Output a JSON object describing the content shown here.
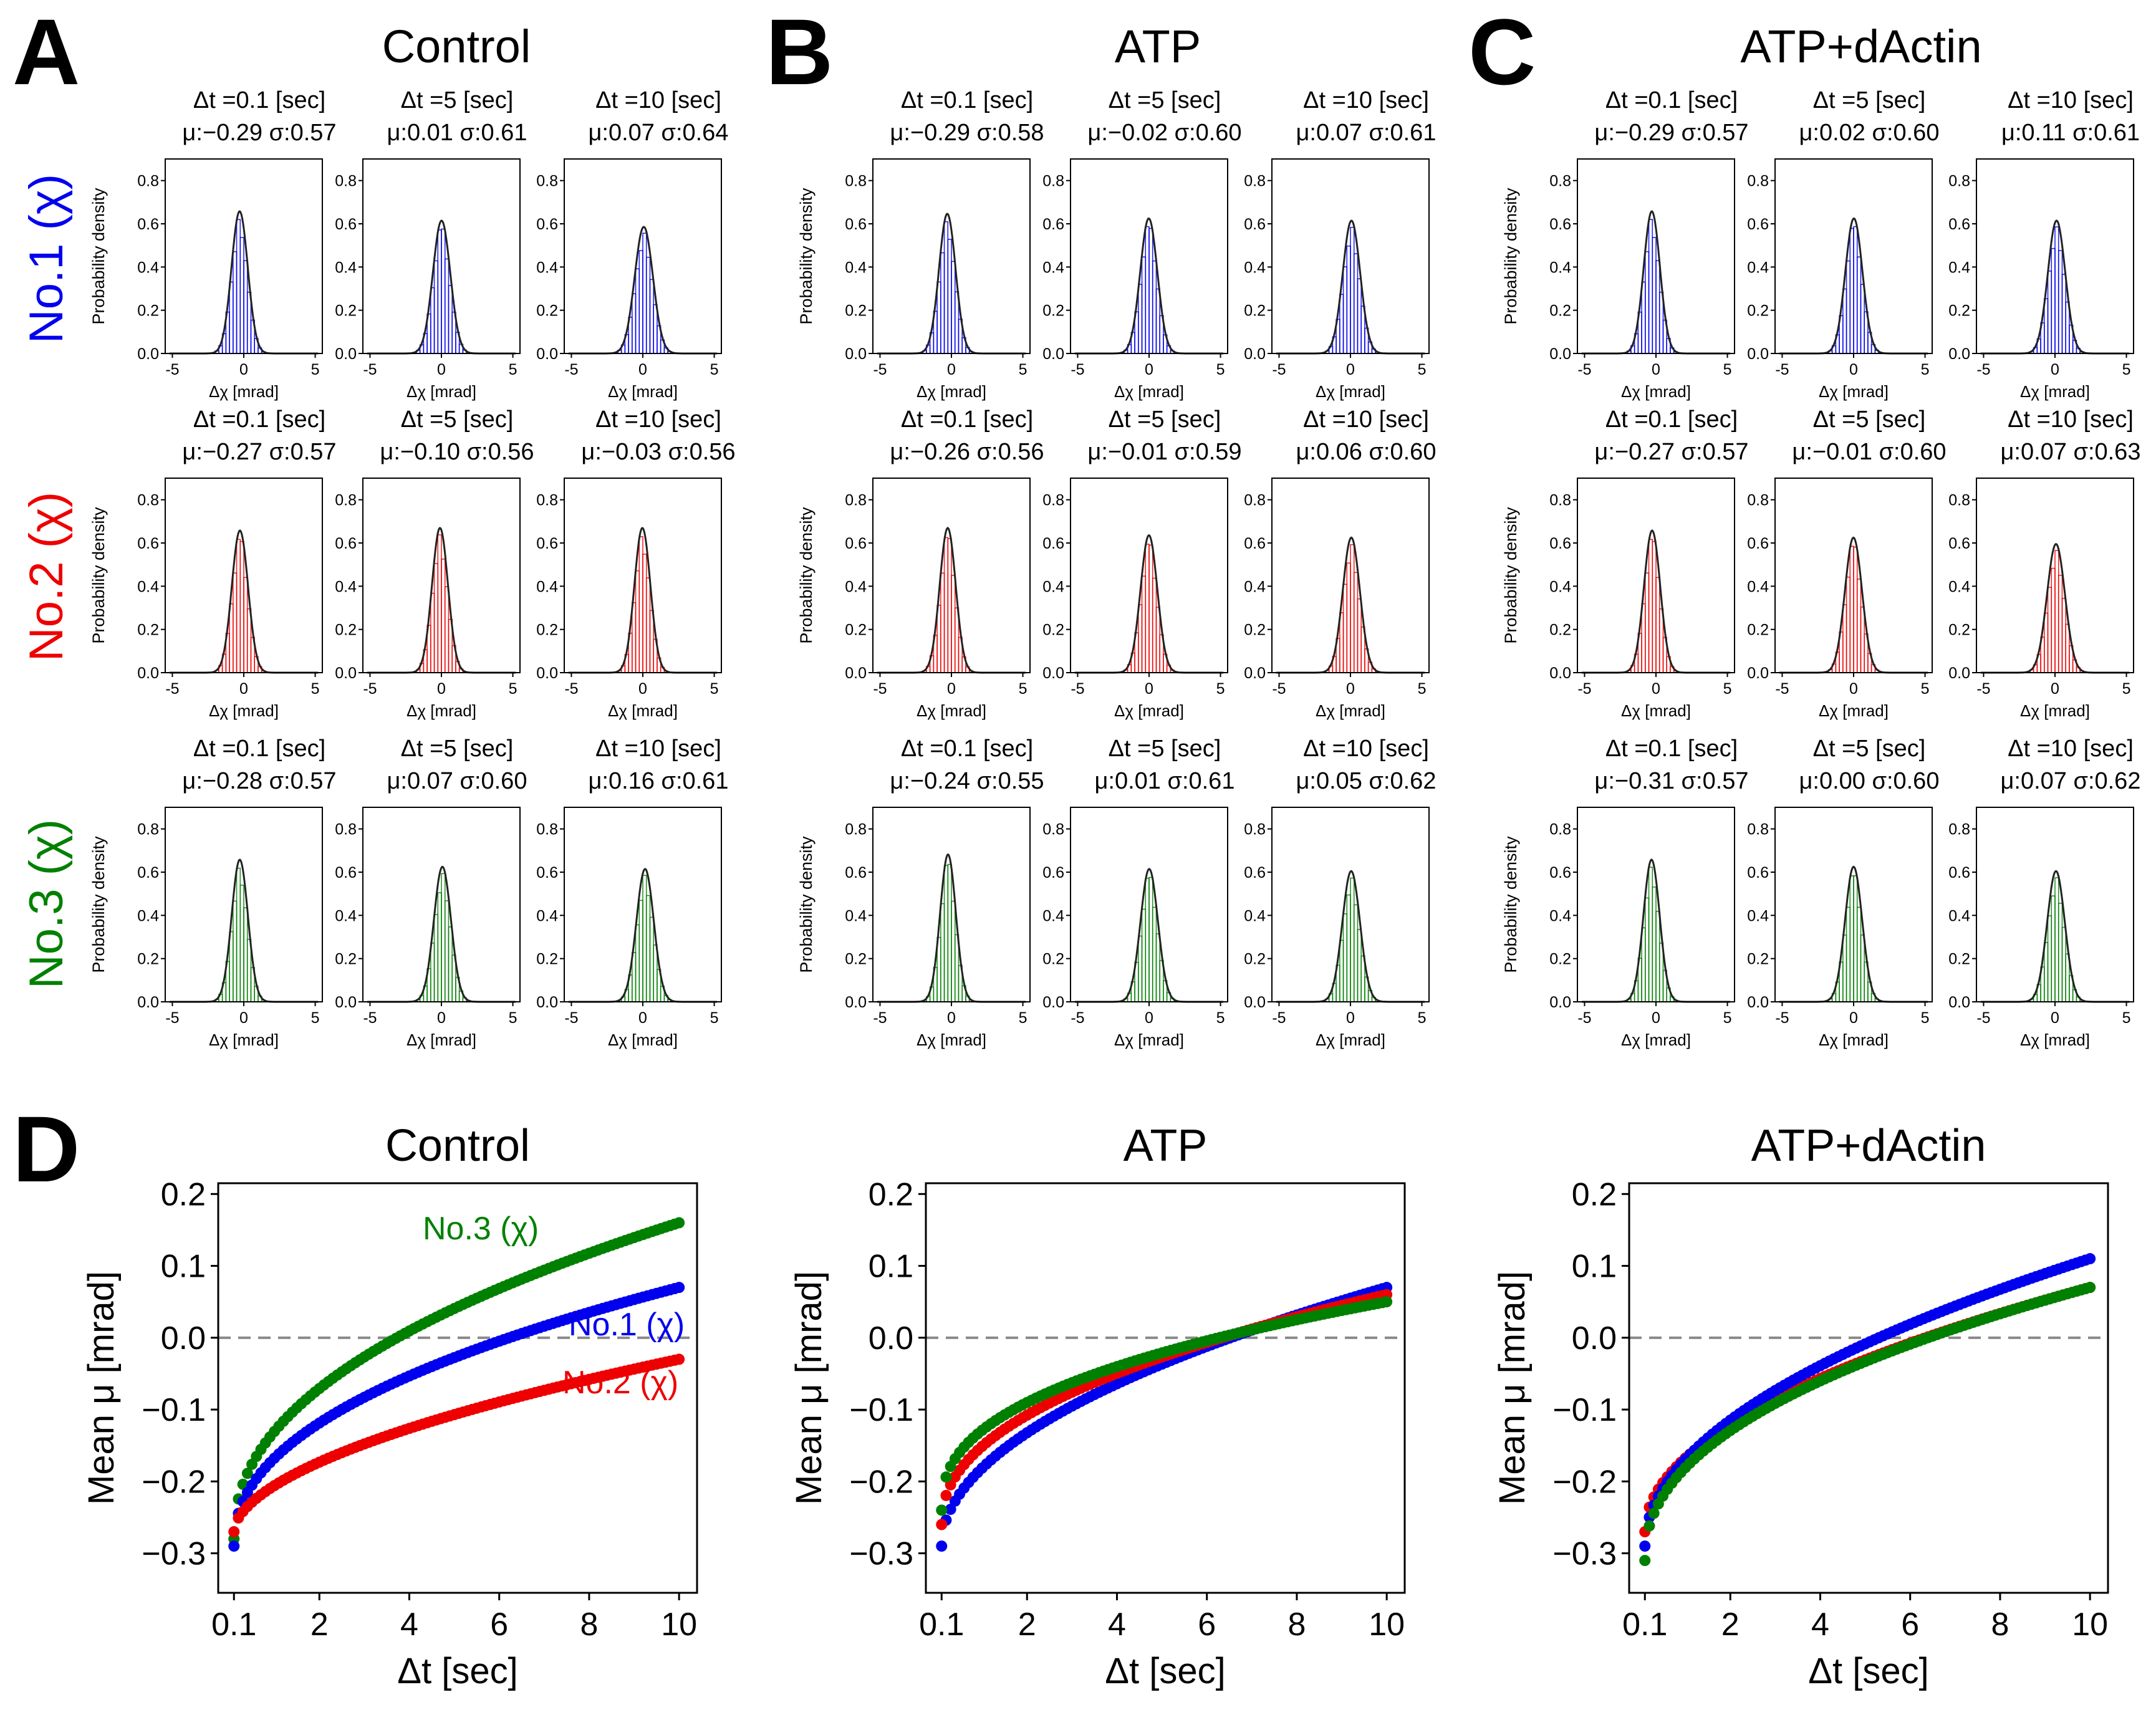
{
  "panel_letters": [
    "A",
    "B",
    "C",
    "D"
  ],
  "colors": {
    "no1": "#0000ee",
    "no2": "#ee0000",
    "no3": "#008000",
    "fit": "#222222",
    "zero_line": "#8a8a8a"
  },
  "row_labels": [
    "No.1 (χ)",
    "No.2 (χ)",
    "No.3 (χ)"
  ],
  "chart_data": [
    {
      "type": "histogram-grid",
      "columns": [
        {
          "title": "Control",
          "rows": [
            [
              {
                "dt": "Δt =0.1 [sec]",
                "stats": "μ:−0.29 σ:0.57",
                "mu": -0.29,
                "sigma": 0.57
              },
              {
                "dt": "Δt =5 [sec]",
                "stats": "μ:0.01 σ:0.61",
                "mu": 0.01,
                "sigma": 0.61
              },
              {
                "dt": "Δt =10 [sec]",
                "stats": "μ:0.07 σ:0.64",
                "mu": 0.07,
                "sigma": 0.64
              }
            ],
            [
              {
                "dt": "Δt =0.1 [sec]",
                "stats": "μ:−0.27 σ:0.57",
                "mu": -0.27,
                "sigma": 0.57
              },
              {
                "dt": "Δt =5 [sec]",
                "stats": "μ:−0.10 σ:0.56",
                "mu": -0.1,
                "sigma": 0.56
              },
              {
                "dt": "Δt =10 [sec]",
                "stats": "μ:−0.03 σ:0.56",
                "mu": -0.03,
                "sigma": 0.56
              }
            ],
            [
              {
                "dt": "Δt =0.1 [sec]",
                "stats": "μ:−0.28 σ:0.57",
                "mu": -0.28,
                "sigma": 0.57
              },
              {
                "dt": "Δt =5 [sec]",
                "stats": "μ:0.07 σ:0.60",
                "mu": 0.07,
                "sigma": 0.6
              },
              {
                "dt": "Δt =10 [sec]",
                "stats": "μ:0.16 σ:0.61",
                "mu": 0.16,
                "sigma": 0.61
              }
            ]
          ]
        },
        {
          "title": "ATP",
          "rows": [
            [
              {
                "dt": "Δt =0.1 [sec]",
                "stats": "μ:−0.29 σ:0.58",
                "mu": -0.29,
                "sigma": 0.58
              },
              {
                "dt": "Δt =5 [sec]",
                "stats": "μ:−0.02 σ:0.60",
                "mu": -0.02,
                "sigma": 0.6
              },
              {
                "dt": "Δt =10 [sec]",
                "stats": "μ:0.07 σ:0.61",
                "mu": 0.07,
                "sigma": 0.61
              }
            ],
            [
              {
                "dt": "Δt =0.1 [sec]",
                "stats": "μ:−0.26 σ:0.56",
                "mu": -0.26,
                "sigma": 0.56
              },
              {
                "dt": "Δt =5 [sec]",
                "stats": "μ:−0.01 σ:0.59",
                "mu": -0.01,
                "sigma": 0.59
              },
              {
                "dt": "Δt =10 [sec]",
                "stats": "μ:0.06 σ:0.60",
                "mu": 0.06,
                "sigma": 0.6
              }
            ],
            [
              {
                "dt": "Δt =0.1 [sec]",
                "stats": "μ:−0.24 σ:0.55",
                "mu": -0.24,
                "sigma": 0.55
              },
              {
                "dt": "Δt =5 [sec]",
                "stats": "μ:0.01 σ:0.61",
                "mu": 0.01,
                "sigma": 0.61
              },
              {
                "dt": "Δt =10 [sec]",
                "stats": "μ:0.05 σ:0.62",
                "mu": 0.05,
                "sigma": 0.62
              }
            ]
          ]
        },
        {
          "title": "ATP+dActin",
          "rows": [
            [
              {
                "dt": "Δt =0.1 [sec]",
                "stats": "μ:−0.29 σ:0.57",
                "mu": -0.29,
                "sigma": 0.57
              },
              {
                "dt": "Δt =5 [sec]",
                "stats": "μ:0.02 σ:0.60",
                "mu": 0.02,
                "sigma": 0.6
              },
              {
                "dt": "Δt =10 [sec]",
                "stats": "μ:0.11 σ:0.61",
                "mu": 0.11,
                "sigma": 0.61
              }
            ],
            [
              {
                "dt": "Δt =0.1 [sec]",
                "stats": "μ:−0.27 σ:0.57",
                "mu": -0.27,
                "sigma": 0.57
              },
              {
                "dt": "Δt =5 [sec]",
                "stats": "μ:−0.01 σ:0.60",
                "mu": -0.01,
                "sigma": 0.6
              },
              {
                "dt": "Δt =10 [sec]",
                "stats": "μ:0.07 σ:0.63",
                "mu": 0.07,
                "sigma": 0.63
              }
            ],
            [
              {
                "dt": "Δt =0.1 [sec]",
                "stats": "μ:−0.31 σ:0.57",
                "mu": -0.31,
                "sigma": 0.57
              },
              {
                "dt": "Δt =5 [sec]",
                "stats": "μ:0.00 σ:0.60",
                "mu": 0.0,
                "sigma": 0.6
              },
              {
                "dt": "Δt =10 [sec]",
                "stats": "μ:0.07 σ:0.62",
                "mu": 0.07,
                "sigma": 0.62
              }
            ]
          ]
        }
      ],
      "ylabel": "Probability density",
      "xlabel": "Δχ [mrad]",
      "xlim": [
        -5.5,
        5.5
      ],
      "xticks": [
        -5,
        0,
        5
      ],
      "ylim": [
        0,
        0.9
      ],
      "yticks": [
        0.0,
        0.2,
        0.4,
        0.6,
        0.8
      ],
      "ytick_labels": [
        "0.0",
        "0.2",
        "0.4",
        "0.6",
        "0.8"
      ]
    },
    {
      "type": "scatter",
      "panels": [
        {
          "title": "Control",
          "series": [
            {
              "name": "No.3 (χ)",
              "color": "#008000",
              "start": -0.28,
              "end": 0.16,
              "exponent": 0.45
            },
            {
              "name": "No.1 (χ)",
              "color": "#0000ee",
              "start": -0.29,
              "end": 0.07,
              "exponent": 0.45
            },
            {
              "name": "No.2 (χ)",
              "color": "#ee0000",
              "start": -0.27,
              "end": -0.03,
              "exponent": 0.55
            }
          ],
          "annotations": [
            "No.3 (χ)",
            "No.1 (χ)",
            "No.2 (χ)"
          ]
        },
        {
          "title": "ATP",
          "series": [
            {
              "name": "No.1 (χ)",
              "color": "#0000ee",
              "start": -0.29,
              "end": 0.07,
              "exponent": 0.5
            },
            {
              "name": "No.2 (χ)",
              "color": "#ee0000",
              "start": -0.26,
              "end": 0.06,
              "exponent": 0.45
            },
            {
              "name": "No.3 (χ)",
              "color": "#008000",
              "start": -0.24,
              "end": 0.05,
              "exponent": 0.4
            }
          ],
          "annotations": []
        },
        {
          "title": "ATP+dActin",
          "series": [
            {
              "name": "No.2 (χ)",
              "color": "#ee0000",
              "start": -0.27,
              "end": 0.07,
              "exponent": 0.5
            },
            {
              "name": "No.1 (χ)",
              "color": "#0000ee",
              "start": -0.29,
              "end": 0.11,
              "exponent": 0.5
            },
            {
              "name": "No.3 (χ)",
              "color": "#008000",
              "start": -0.31,
              "end": 0.07,
              "exponent": 0.45
            }
          ],
          "annotations": []
        }
      ],
      "x_start": 0.1,
      "x_end": 10,
      "n_points": 100,
      "xlabel": "Δt [sec]",
      "ylabel": "Mean μ [mrad]",
      "xlim": [
        -0.25,
        10.4
      ],
      "ylim": [
        -0.355,
        0.215
      ],
      "xticks": [
        0.1,
        2,
        4,
        6,
        8,
        10
      ],
      "xtick_labels": [
        "0.1",
        "2",
        "4",
        "6",
        "8",
        "10"
      ],
      "yticks": [
        0.2,
        0.1,
        0.0,
        -0.1,
        -0.2,
        -0.3
      ],
      "ytick_labels": [
        "0.2",
        "0.1",
        "0.0",
        "−0.1",
        "−0.2",
        "−0.3"
      ],
      "reference_line_y": 0
    }
  ]
}
